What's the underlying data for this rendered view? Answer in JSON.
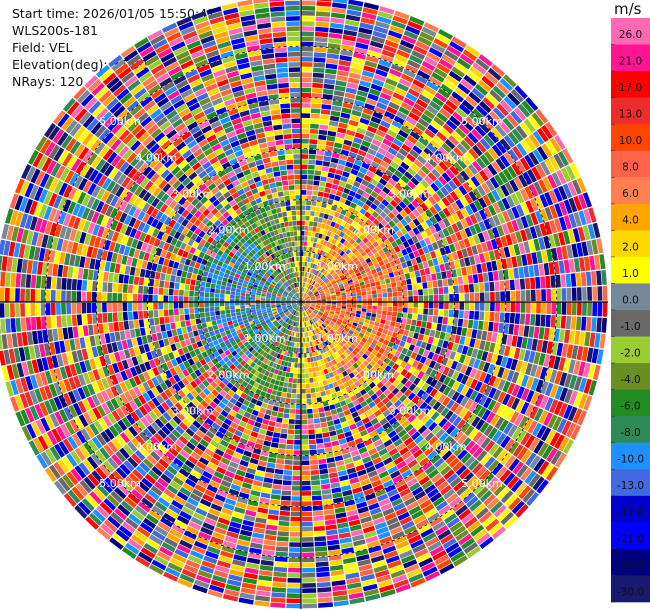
{
  "header": {
    "start_time": "Start time: 2026/01/05 15:50:41",
    "instrument": "WLS200s-181",
    "field": "Field: VEL",
    "elevation": "Elevation(deg): 35.00",
    "nrays": "NRays: 120"
  },
  "chart_data": {
    "type": "heatmap",
    "projection": "polar (PPI scan)",
    "field": "VEL",
    "rays": 120,
    "max_range_km": 6.0,
    "range_rings_km": [
      1.0,
      2.0,
      3.0,
      4.0,
      5.0
    ],
    "range_ring_labels": [
      "1.00km",
      "2.00km",
      "3.00km",
      "4.00km",
      "5.00km"
    ],
    "ring_label_azimuths_deg": [
      45,
      135,
      225,
      315
    ],
    "colorbar": {
      "unit": "m/s",
      "tick_labels": [
        "26.0",
        "21.0",
        "17.0",
        "13.0",
        "10.0",
        "8.0",
        "6.0",
        "4.0",
        "2.0",
        "1.0",
        "0.0",
        "-1.0",
        "-2.0",
        "-4.0",
        "-6.0",
        "-8.0",
        "-10.0",
        "-13.0",
        "-17.0",
        "-21.0",
        "-26.0",
        "-30.0"
      ],
      "colors": [
        "#ff69b4",
        "#ff1493",
        "#ff0000",
        "#ee2c2c",
        "#ff4500",
        "#ff6347",
        "#ff7f50",
        "#ffa500",
        "#ffd700",
        "#ffff00",
        "#778899",
        "#696969",
        "#9acd32",
        "#6b8e23",
        "#228b22",
        "#2e8b57",
        "#1e90ff",
        "#4169e1",
        "#0000cd",
        "#0000ff",
        "#000080",
        "#191970"
      ]
    },
    "pattern_note": "Near-field returns (< ~2 km) show coherent flow: negative (blue/green) velocities on the west side, positive (orange/red) on the east side; beyond ~2 km returns are random noise across the full scale."
  }
}
